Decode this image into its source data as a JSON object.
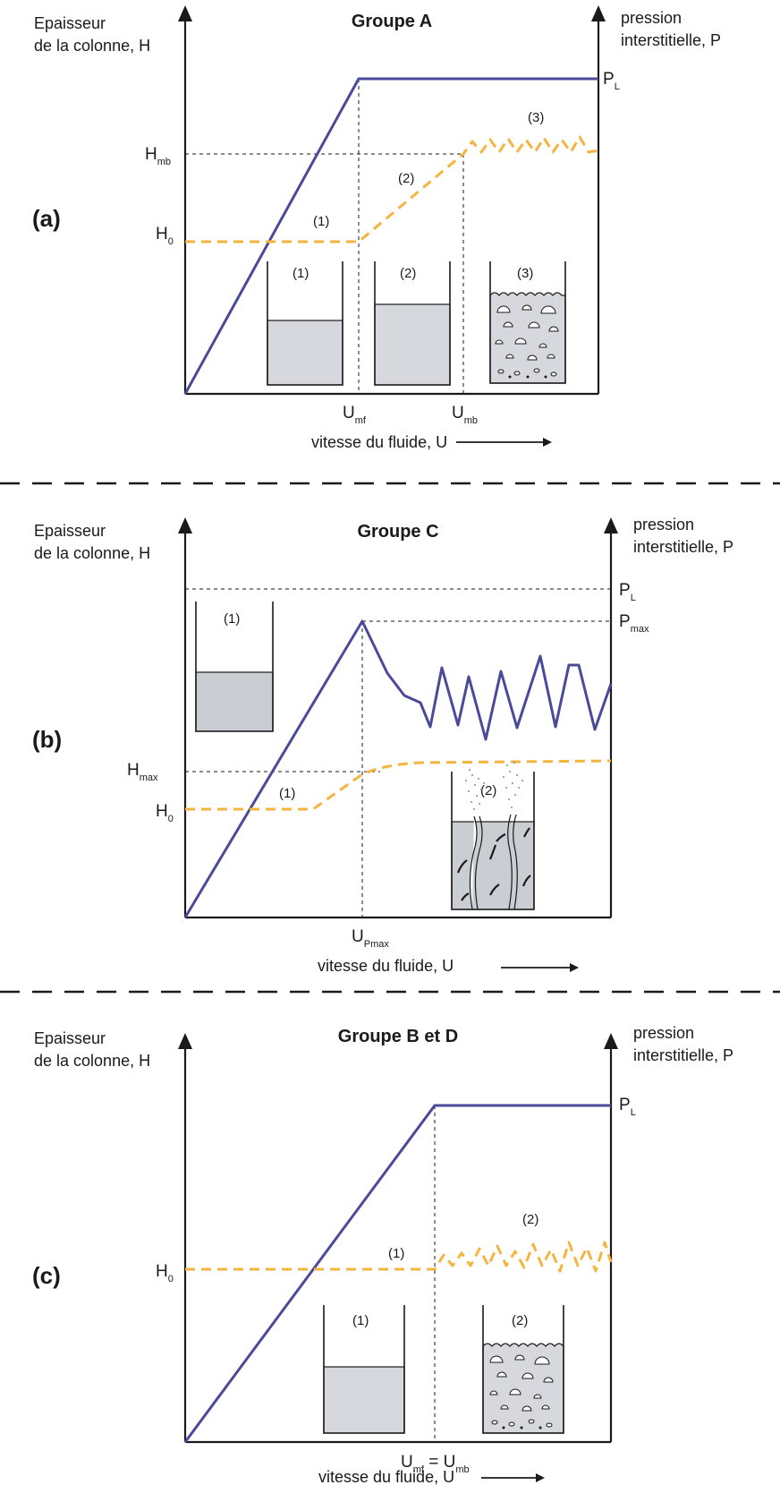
{
  "panels": [
    {
      "id": "a",
      "panel_label": "(a)",
      "title": "Groupe A",
      "y_left_label": [
        "Epaisseur",
        "de la colonne, H"
      ],
      "y_right_label": [
        "pression",
        "interstitielle, P"
      ],
      "x_label": "vitesse du fluide, U",
      "right_tick": {
        "main": "P",
        "sub": "L"
      },
      "left_ticks": [
        {
          "main": "H",
          "sub": "mb"
        },
        {
          "main": "H",
          "sub": "0"
        }
      ],
      "x_ticks": [
        {
          "main": "U",
          "sub": "mf"
        },
        {
          "main": "U",
          "sub": "mb"
        }
      ],
      "curve_labels": [
        "(1)",
        "(2)",
        "(3)"
      ],
      "beaker_labels": [
        "(1)",
        "(2)",
        "(3)"
      ]
    },
    {
      "id": "b",
      "panel_label": "(b)",
      "title": "Groupe C",
      "y_left_label": [
        "Epaisseur",
        "de la colonne, H"
      ],
      "y_right_label": [
        "pression",
        "interstitielle, P"
      ],
      "x_label": "vitesse du fluide, U",
      "right_ticks": [
        {
          "main": "P",
          "sub": "L"
        },
        {
          "main": "P",
          "sub": "max"
        }
      ],
      "left_ticks": [
        {
          "main": "H",
          "sub": "max"
        },
        {
          "main": "H",
          "sub": "0"
        }
      ],
      "x_ticks": [
        {
          "main": "U",
          "sub": "Pmax"
        }
      ],
      "curve_labels": [
        "(1)"
      ],
      "beaker_labels": [
        "(1)",
        "(2)"
      ]
    },
    {
      "id": "c",
      "panel_label": "(c)",
      "title": "Groupe B et D",
      "y_left_label": [
        "Epaisseur",
        "de la colonne, H"
      ],
      "y_right_label": [
        "pression",
        "interstitielle, P"
      ],
      "x_label": "vitesse du fluide, U",
      "right_tick": {
        "main": "P",
        "sub": "L"
      },
      "left_ticks": [
        {
          "main": "H",
          "sub": "0"
        }
      ],
      "x_ticks": [
        {
          "parts": [
            {
              "main": "U",
              "sub": "mf"
            },
            {
              "text": " = "
            },
            {
              "main": "U",
              "sub": "mb"
            }
          ]
        }
      ],
      "curve_labels": [
        "(1)",
        "(2)"
      ],
      "beaker_labels": [
        "(1)",
        "(2)"
      ]
    }
  ],
  "colors": {
    "pressure_line": "#4b4a9a",
    "height_line": "#f5b440",
    "bed_fill": "#d6d8dd"
  },
  "icons": [
    "arrow-right-icon",
    "bubble-icon",
    "channel-icon"
  ]
}
